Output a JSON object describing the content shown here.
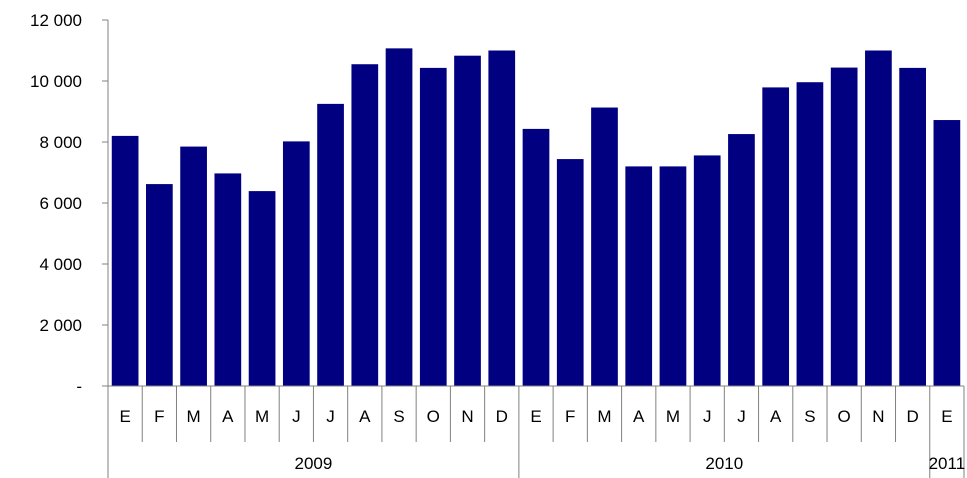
{
  "chart_data": {
    "type": "bar",
    "title": "",
    "xlabel": "",
    "ylabel": "",
    "ylim": [
      0,
      12000
    ],
    "yticks": [
      0,
      2000,
      4000,
      6000,
      8000,
      10000,
      12000
    ],
    "ytick_labels": [
      "-",
      "2 000",
      "4 000",
      "6 000",
      "8 000",
      "10 000",
      "12 000"
    ],
    "grid": false,
    "legend": "none",
    "bar_color": "#000080",
    "categories": [
      "E",
      "F",
      "M",
      "A",
      "M",
      "J",
      "J",
      "A",
      "S",
      "O",
      "N",
      "D",
      "E",
      "F",
      "M",
      "A",
      "M",
      "J",
      "J",
      "A",
      "S",
      "O",
      "N",
      "D",
      "E"
    ],
    "values": [
      8200,
      6620,
      7850,
      6970,
      6390,
      8020,
      9250,
      10550,
      11070,
      10430,
      10830,
      11000,
      8430,
      7440,
      9130,
      7200,
      7200,
      7560,
      8260,
      9790,
      9960,
      10440,
      11000,
      10430,
      8720
    ],
    "groups": [
      {
        "label": "2009",
        "count": 12
      },
      {
        "label": "2010",
        "count": 12
      },
      {
        "label": "2011",
        "count": 1
      }
    ]
  }
}
